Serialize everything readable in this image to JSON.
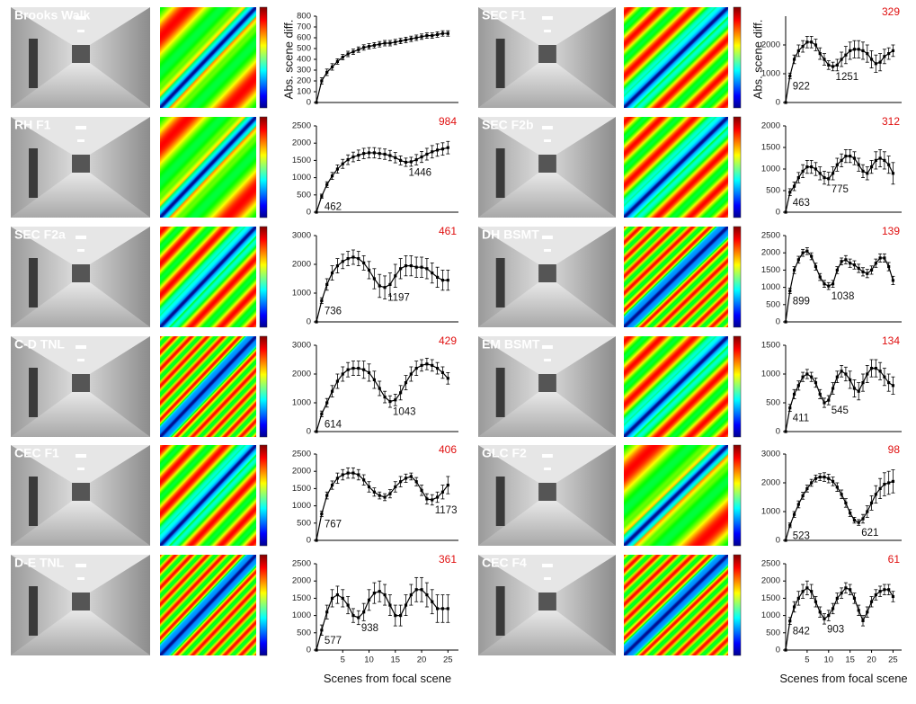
{
  "chart_data": [
    {
      "type": "line",
      "title": "Brooks Walk",
      "ylabel": "Abs. scene diff.",
      "x": [
        0,
        1,
        2,
        3,
        4,
        5,
        6,
        7,
        8,
        9,
        10,
        11,
        12,
        13,
        14,
        15,
        16,
        17,
        18,
        19,
        20,
        21,
        22,
        23,
        24,
        25
      ],
      "values": [
        0,
        200,
        280,
        330,
        380,
        420,
        450,
        470,
        490,
        510,
        520,
        530,
        540,
        550,
        550,
        560,
        570,
        580,
        590,
        600,
        610,
        620,
        620,
        630,
        640,
        640
      ],
      "errors": [
        0,
        30,
        30,
        30,
        25,
        25,
        25,
        25,
        25,
        25,
        25,
        25,
        25,
        25,
        25,
        25,
        25,
        25,
        25,
        25,
        25,
        25,
        25,
        25,
        25,
        25
      ],
      "xlim": [
        0,
        27
      ],
      "ylim": [
        0,
        800
      ],
      "yticks": [
        0,
        100,
        200,
        300,
        400,
        500,
        600,
        700,
        800
      ],
      "minima": []
    },
    {
      "type": "line",
      "title": "RH F1",
      "note": 984,
      "x": [
        0,
        1,
        2,
        3,
        4,
        5,
        6,
        7,
        8,
        9,
        10,
        11,
        12,
        13,
        14,
        15,
        16,
        17,
        18,
        19,
        20,
        21,
        22,
        23,
        24,
        25
      ],
      "values": [
        0,
        462,
        800,
        1050,
        1250,
        1400,
        1520,
        1600,
        1650,
        1700,
        1720,
        1720,
        1700,
        1680,
        1640,
        1580,
        1500,
        1446,
        1460,
        1520,
        1600,
        1680,
        1750,
        1800,
        1830,
        1870
      ],
      "errors": [
        0,
        60,
        80,
        100,
        120,
        130,
        140,
        140,
        150,
        150,
        150,
        150,
        150,
        150,
        150,
        150,
        130,
        120,
        130,
        150,
        160,
        170,
        180,
        180,
        180,
        180
      ],
      "xlim": [
        0,
        27
      ],
      "ylim": [
        0,
        2500
      ],
      "yticks": [
        0,
        500,
        1000,
        1500,
        2000,
        2500
      ],
      "minima": [
        {
          "x": 1,
          "value": 462
        },
        {
          "x": 17,
          "value": 1446
        }
      ]
    },
    {
      "type": "line",
      "title": "SEC F2a",
      "note": 461,
      "x": [
        0,
        1,
        2,
        3,
        4,
        5,
        6,
        7,
        8,
        9,
        10,
        11,
        12,
        13,
        14,
        15,
        16,
        17,
        18,
        19,
        20,
        21,
        22,
        23,
        24,
        25
      ],
      "values": [
        0,
        736,
        1300,
        1700,
        1950,
        2100,
        2200,
        2250,
        2200,
        2050,
        1800,
        1500,
        1250,
        1197,
        1300,
        1600,
        1850,
        1950,
        1950,
        1900,
        1900,
        1850,
        1700,
        1550,
        1450,
        1450
      ],
      "errors": [
        0,
        100,
        200,
        250,
        250,
        250,
        250,
        250,
        250,
        250,
        300,
        350,
        400,
        400,
        400,
        400,
        350,
        350,
        350,
        350,
        350,
        350,
        350,
        350,
        350,
        350
      ],
      "xlim": [
        0,
        27
      ],
      "ylim": [
        0,
        3000
      ],
      "yticks": [
        0,
        1000,
        2000,
        3000
      ],
      "minima": [
        {
          "x": 1,
          "value": 736
        },
        {
          "x": 13,
          "value": 1197
        }
      ]
    },
    {
      "type": "line",
      "title": "C-D TNL",
      "note": 429,
      "x": [
        0,
        1,
        2,
        3,
        4,
        5,
        6,
        7,
        8,
        9,
        10,
        11,
        12,
        13,
        14,
        15,
        16,
        17,
        18,
        19,
        20,
        21,
        22,
        23,
        24,
        25
      ],
      "values": [
        0,
        614,
        1000,
        1400,
        1750,
        2000,
        2150,
        2200,
        2200,
        2150,
        2050,
        1800,
        1500,
        1200,
        1043,
        1100,
        1350,
        1700,
        2000,
        2200,
        2300,
        2350,
        2300,
        2200,
        2050,
        1850
      ],
      "errors": [
        0,
        100,
        150,
        200,
        250,
        250,
        250,
        250,
        250,
        300,
        300,
        300,
        250,
        200,
        200,
        200,
        250,
        250,
        250,
        250,
        200,
        200,
        200,
        200,
        200,
        200
      ],
      "xlim": [
        0,
        27
      ],
      "ylim": [
        0,
        3000
      ],
      "yticks": [
        0,
        1000,
        2000,
        3000
      ],
      "minima": [
        {
          "x": 1,
          "value": 614
        },
        {
          "x": 14,
          "value": 1043
        }
      ]
    },
    {
      "type": "line",
      "title": "CEC F1",
      "note": 406,
      "x": [
        0,
        1,
        2,
        3,
        4,
        5,
        6,
        7,
        8,
        9,
        10,
        11,
        12,
        13,
        14,
        15,
        16,
        17,
        18,
        19,
        20,
        21,
        22,
        23,
        24,
        25
      ],
      "values": [
        0,
        767,
        1300,
        1600,
        1800,
        1900,
        1950,
        1950,
        1900,
        1750,
        1550,
        1400,
        1300,
        1250,
        1350,
        1550,
        1700,
        1800,
        1850,
        1700,
        1450,
        1200,
        1173,
        1250,
        1400,
        1600
      ],
      "errors": [
        0,
        80,
        100,
        120,
        150,
        150,
        150,
        150,
        150,
        150,
        150,
        120,
        100,
        100,
        120,
        150,
        150,
        120,
        100,
        120,
        150,
        150,
        150,
        150,
        200,
        250
      ],
      "xlim": [
        0,
        27
      ],
      "ylim": [
        0,
        2500
      ],
      "yticks": [
        0,
        500,
        1000,
        1500,
        2000,
        2500
      ],
      "minima": [
        {
          "x": 1,
          "value": 767
        },
        {
          "x": 22,
          "value": 1173
        }
      ]
    },
    {
      "type": "line",
      "title": "D-E TNL",
      "note": 361,
      "xlabel": "Scenes from focal scene",
      "x": [
        0,
        1,
        2,
        3,
        4,
        5,
        6,
        7,
        8,
        9,
        10,
        11,
        12,
        13,
        14,
        15,
        16,
        17,
        18,
        19,
        20,
        21,
        22,
        23,
        24,
        25
      ],
      "values": [
        0,
        577,
        1100,
        1500,
        1600,
        1500,
        1300,
        1000,
        938,
        1100,
        1450,
        1650,
        1700,
        1600,
        1300,
        1000,
        1000,
        1300,
        1600,
        1750,
        1750,
        1600,
        1400,
        1200,
        1200,
        1200
      ],
      "errors": [
        0,
        150,
        200,
        250,
        250,
        250,
        250,
        200,
        200,
        250,
        300,
        300,
        300,
        300,
        300,
        300,
        300,
        300,
        300,
        350,
        350,
        350,
        350,
        400,
        400,
        400
      ],
      "xlim": [
        0,
        27
      ],
      "ylim": [
        0,
        2500
      ],
      "yticks": [
        0,
        500,
        1000,
        1500,
        2000,
        2500
      ],
      "xticks": [
        5,
        10,
        15,
        20,
        25
      ],
      "minima": [
        {
          "x": 1,
          "value": 577
        },
        {
          "x": 8,
          "value": 938
        }
      ]
    },
    {
      "type": "line",
      "title": "SEC F1",
      "note": 329,
      "ylabel": "Abs. scene diff.",
      "x": [
        0,
        1,
        2,
        3,
        4,
        5,
        6,
        7,
        8,
        9,
        10,
        11,
        12,
        13,
        14,
        15,
        16,
        17,
        18,
        19,
        20,
        21,
        22,
        23,
        24,
        25
      ],
      "values": [
        0,
        922,
        1500,
        1800,
        1950,
        2100,
        2100,
        2000,
        1700,
        1500,
        1300,
        1251,
        1300,
        1500,
        1650,
        1800,
        1850,
        1850,
        1800,
        1700,
        1500,
        1350,
        1400,
        1600,
        1700,
        1800
      ],
      "errors": [
        0,
        100,
        150,
        200,
        200,
        200,
        200,
        200,
        200,
        200,
        150,
        150,
        200,
        250,
        300,
        300,
        300,
        300,
        300,
        300,
        300,
        300,
        300,
        250,
        200,
        200
      ],
      "xlim": [
        0,
        27
      ],
      "ylim": [
        0,
        3000
      ],
      "yticks": [
        0,
        1000,
        2000
      ],
      "minima": [
        {
          "x": 1,
          "value": 922
        },
        {
          "x": 11,
          "value": 1251
        }
      ]
    },
    {
      "type": "line",
      "title": "SEC F2b",
      "note": 312,
      "x": [
        0,
        1,
        2,
        3,
        4,
        5,
        6,
        7,
        8,
        9,
        10,
        11,
        12,
        13,
        14,
        15,
        16,
        17,
        18,
        19,
        20,
        21,
        22,
        23,
        24,
        25
      ],
      "values": [
        0,
        463,
        600,
        800,
        950,
        1050,
        1050,
        1000,
        900,
        800,
        775,
        900,
        1100,
        1200,
        1300,
        1300,
        1250,
        1100,
        950,
        900,
        1050,
        1200,
        1250,
        1200,
        1100,
        900
      ],
      "errors": [
        0,
        80,
        100,
        120,
        150,
        150,
        150,
        150,
        150,
        150,
        150,
        150,
        150,
        150,
        150,
        150,
        150,
        150,
        150,
        150,
        150,
        200,
        200,
        200,
        200,
        250
      ],
      "xlim": [
        0,
        27
      ],
      "ylim": [
        0,
        2000
      ],
      "yticks": [
        0,
        500,
        1000,
        1500,
        2000
      ],
      "minima": [
        {
          "x": 1,
          "value": 463
        },
        {
          "x": 10,
          "value": 775
        }
      ]
    },
    {
      "type": "line",
      "title": "DH BSMT",
      "note": 139,
      "x": [
        0,
        1,
        2,
        3,
        4,
        5,
        6,
        7,
        8,
        9,
        10,
        11,
        12,
        13,
        14,
        15,
        16,
        17,
        18,
        19,
        20,
        21,
        22,
        23,
        24,
        25
      ],
      "values": [
        0,
        899,
        1500,
        1800,
        2000,
        2050,
        1900,
        1600,
        1300,
        1100,
        1038,
        1100,
        1500,
        1750,
        1800,
        1700,
        1650,
        1550,
        1450,
        1400,
        1500,
        1700,
        1850,
        1850,
        1600,
        1200
      ],
      "errors": [
        0,
        80,
        100,
        100,
        100,
        100,
        100,
        100,
        100,
        100,
        100,
        100,
        100,
        100,
        120,
        120,
        120,
        120,
        120,
        120,
        120,
        120,
        120,
        120,
        120,
        120
      ],
      "xlim": [
        0,
        27
      ],
      "ylim": [
        0,
        2500
      ],
      "yticks": [
        0,
        500,
        1000,
        1500,
        2000,
        2500
      ],
      "minima": [
        {
          "x": 1,
          "value": 899
        },
        {
          "x": 10,
          "value": 1038
        }
      ]
    },
    {
      "type": "line",
      "title": "EM BSMT",
      "note": 134,
      "x": [
        0,
        1,
        2,
        3,
        4,
        5,
        6,
        7,
        8,
        9,
        10,
        11,
        12,
        13,
        14,
        15,
        16,
        17,
        18,
        19,
        20,
        21,
        22,
        23,
        24,
        25
      ],
      "values": [
        0,
        411,
        650,
        800,
        950,
        1000,
        950,
        850,
        650,
        500,
        545,
        750,
        950,
        1050,
        1000,
        900,
        750,
        700,
        850,
        1000,
        1100,
        1100,
        1050,
        950,
        850,
        800
      ],
      "errors": [
        0,
        60,
        80,
        80,
        80,
        80,
        80,
        80,
        80,
        80,
        80,
        100,
        100,
        100,
        120,
        150,
        150,
        150,
        150,
        150,
        150,
        150,
        150,
        150,
        150,
        150
      ],
      "xlim": [
        0,
        27
      ],
      "ylim": [
        0,
        1500
      ],
      "yticks": [
        0,
        500,
        1000,
        1500
      ],
      "minima": [
        {
          "x": 1,
          "value": 411
        },
        {
          "x": 10,
          "value": 545
        }
      ]
    },
    {
      "type": "line",
      "title": "GLC F2",
      "note": 98,
      "x": [
        0,
        1,
        2,
        3,
        4,
        5,
        6,
        7,
        8,
        9,
        10,
        11,
        12,
        13,
        14,
        15,
        16,
        17,
        18,
        19,
        20,
        21,
        22,
        23,
        24,
        25
      ],
      "values": [
        0,
        523,
        900,
        1250,
        1550,
        1800,
        2000,
        2150,
        2200,
        2200,
        2150,
        2050,
        1850,
        1600,
        1300,
        950,
        700,
        621,
        750,
        1000,
        1300,
        1600,
        1800,
        1950,
        2000,
        2050
      ],
      "errors": [
        0,
        80,
        100,
        120,
        120,
        120,
        120,
        120,
        120,
        150,
        150,
        150,
        150,
        150,
        150,
        120,
        100,
        100,
        150,
        200,
        250,
        300,
        350,
        400,
        400,
        400
      ],
      "xlim": [
        0,
        27
      ],
      "ylim": [
        0,
        3000
      ],
      "yticks": [
        0,
        1000,
        2000,
        3000
      ],
      "minima": [
        {
          "x": 1,
          "value": 523
        },
        {
          "x": 17,
          "value": 621
        }
      ]
    },
    {
      "type": "line",
      "title": "CEC F4",
      "note": 61,
      "xlabel": "Scenes from focal scene",
      "x": [
        0,
        1,
        2,
        3,
        4,
        5,
        6,
        7,
        8,
        9,
        10,
        11,
        12,
        13,
        14,
        15,
        16,
        17,
        18,
        19,
        20,
        21,
        22,
        23,
        24,
        25
      ],
      "values": [
        0,
        842,
        1250,
        1500,
        1700,
        1800,
        1700,
        1400,
        1100,
        903,
        1000,
        1200,
        1500,
        1650,
        1800,
        1750,
        1500,
        1150,
        850,
        1100,
        1400,
        1600,
        1700,
        1750,
        1750,
        1550
      ],
      "errors": [
        0,
        100,
        150,
        200,
        200,
        200,
        200,
        150,
        150,
        150,
        150,
        150,
        150,
        150,
        150,
        150,
        150,
        150,
        150,
        150,
        150,
        150,
        150,
        150,
        150,
        150
      ],
      "xlim": [
        0,
        27
      ],
      "ylim": [
        0,
        2500
      ],
      "yticks": [
        0,
        500,
        1000,
        1500,
        2000,
        2500
      ],
      "xticks": [
        5,
        10,
        15,
        20,
        25
      ],
      "minima": [
        {
          "x": 1,
          "value": 842
        },
        {
          "x": 9,
          "value": 903
        }
      ]
    }
  ]
}
